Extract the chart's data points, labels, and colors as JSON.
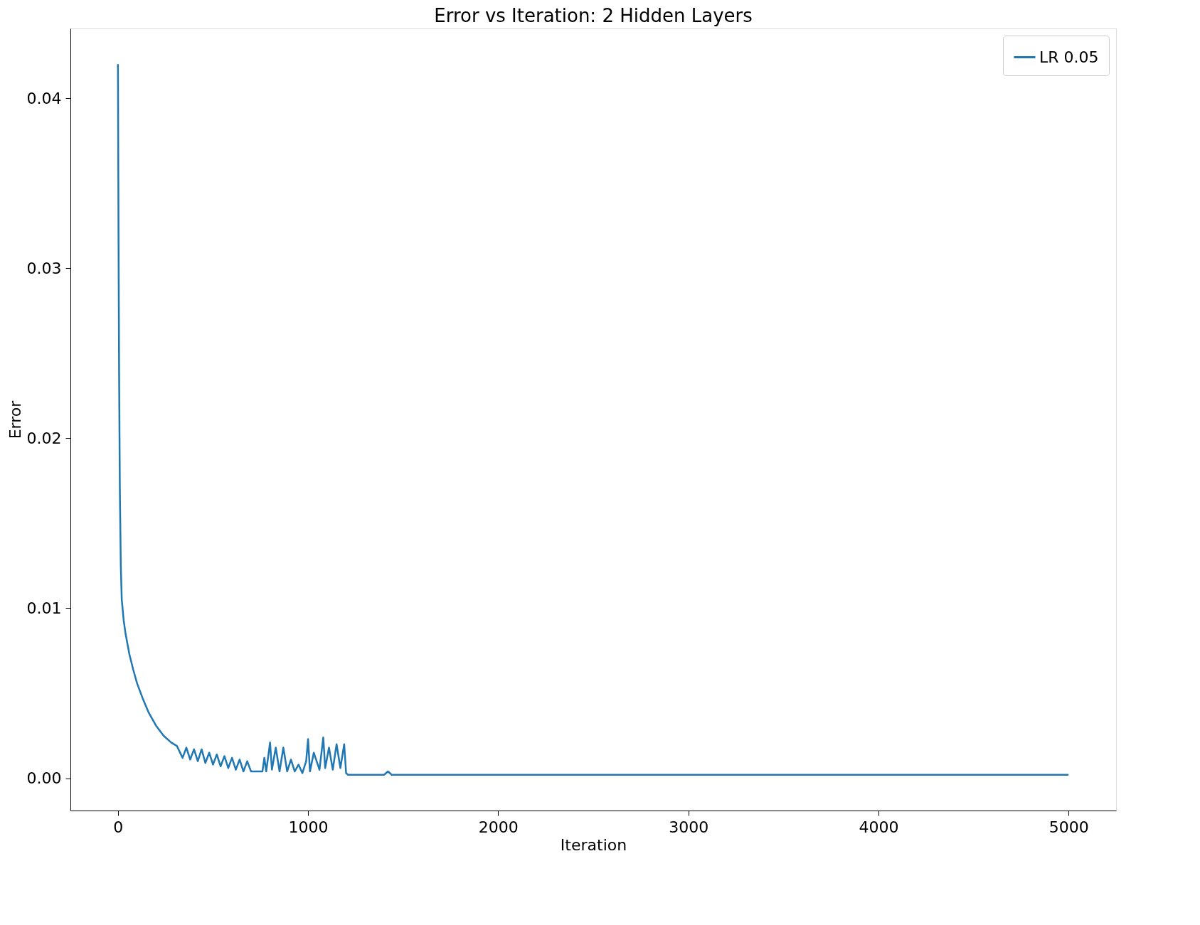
{
  "chart_data": {
    "type": "line",
    "title": "Error vs Iteration: 2 Hidden Layers",
    "xlabel": "Iteration",
    "ylabel": "Error",
    "xlim": [
      -250,
      5250
    ],
    "ylim": [
      -0.0019,
      0.0441
    ],
    "xticks": [
      0,
      1000,
      2000,
      3000,
      4000,
      5000
    ],
    "yticks": [
      {
        "value": 0,
        "label": "0.00"
      },
      0.01,
      0.02,
      0.03,
      0.04
    ],
    "legend": "top right",
    "grid": false,
    "line_style": "solid",
    "marker": "none",
    "series": [
      {
        "name": "LR 0.05",
        "color": "#1f77b4",
        "x": [
          0,
          3,
          6,
          10,
          15,
          20,
          30,
          40,
          60,
          80,
          100,
          130,
          160,
          200,
          240,
          280,
          310,
          340,
          360,
          380,
          400,
          420,
          440,
          460,
          480,
          500,
          520,
          540,
          560,
          580,
          600,
          620,
          640,
          660,
          680,
          700,
          730,
          760,
          770,
          780,
          800,
          810,
          830,
          850,
          870,
          890,
          910,
          930,
          950,
          970,
          990,
          1000,
          1010,
          1030,
          1060,
          1080,
          1090,
          1110,
          1130,
          1150,
          1170,
          1190,
          1200,
          1210,
          1300,
          1400,
          1420,
          1440,
          2000,
          3000,
          4000,
          5000
        ],
        "values": [
          0.042,
          0.032,
          0.024,
          0.017,
          0.0125,
          0.0105,
          0.0093,
          0.0085,
          0.0073,
          0.0064,
          0.0056,
          0.0047,
          0.0039,
          0.0031,
          0.0025,
          0.0021,
          0.0019,
          0.0012,
          0.0018,
          0.0011,
          0.0017,
          0.001,
          0.0017,
          0.0009,
          0.0015,
          0.0008,
          0.0014,
          0.0007,
          0.0013,
          0.0006,
          0.0012,
          0.0005,
          0.0011,
          0.0004,
          0.001,
          0.0004,
          0.0004,
          0.0004,
          0.0012,
          0.0004,
          0.0021,
          0.0005,
          0.0018,
          0.0004,
          0.0018,
          0.0004,
          0.0011,
          0.0004,
          0.0008,
          0.0003,
          0.001,
          0.0023,
          0.0004,
          0.0015,
          0.0005,
          0.0024,
          0.0006,
          0.0018,
          0.0005,
          0.002,
          0.0006,
          0.002,
          0.0003,
          0.0002,
          0.0002,
          0.0002,
          0.0004,
          0.0002,
          0.0002,
          0.0002,
          0.0002,
          0.0002
        ]
      }
    ]
  }
}
